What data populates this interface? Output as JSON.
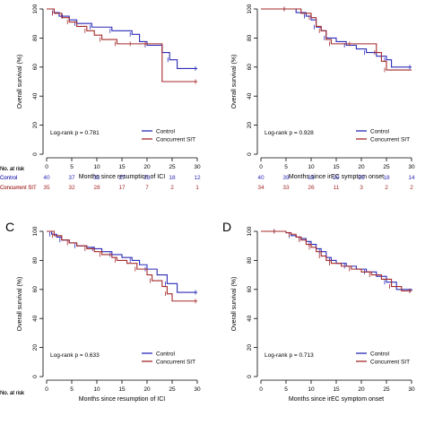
{
  "colors": {
    "control": "#2b2bb8",
    "concurrent": "#a52a2a"
  },
  "chart_data": [
    {
      "type": "line",
      "panel_label": "",
      "xlabel": "Months since resumption of ICI",
      "ylabel": "Overall survival (%)",
      "xlim": [
        0,
        30
      ],
      "ylim": [
        0,
        100
      ],
      "xticks": [
        "0",
        "5",
        "10",
        "15",
        "20",
        "25",
        "30"
      ],
      "yticks": [
        "0",
        "20",
        "40",
        "60",
        "80",
        "100"
      ],
      "legend": [
        "Control",
        "Concurrent SIT"
      ],
      "pvalue": "Log-rank p = 0.781",
      "series": [
        {
          "name": "Control",
          "x": [
            0,
            1.5,
            2.5,
            3.5,
            4.5,
            6,
            7.5,
            9,
            11,
            13,
            15,
            17,
            18.5,
            20,
            23,
            24.5,
            26,
            30
          ],
          "y": [
            100,
            97.5,
            95,
            95,
            92.5,
            90,
            90,
            87.5,
            87.5,
            85,
            85,
            82.5,
            77.5,
            75,
            70,
            65,
            59,
            59
          ]
        },
        {
          "name": "Concurrent SIT",
          "x": [
            0,
            1.5,
            3,
            4.5,
            6,
            8,
            9.5,
            11,
            13,
            14,
            15,
            17,
            18.5,
            20,
            23,
            30
          ],
          "y": [
            100,
            97,
            94,
            91,
            88,
            85,
            82,
            79,
            79,
            76,
            76,
            76,
            76,
            76,
            50,
            50
          ]
        }
      ],
      "risk_table": {
        "title": "No. at risk",
        "rows": [
          {
            "label": "Control",
            "values": [
              "40",
              "37",
              "32",
              "27",
              "23",
              "18",
              "12"
            ]
          },
          {
            "label": "Concurrent SIT",
            "values": [
              "35",
              "32",
              "28",
              "17",
              "7",
              "2",
              "1"
            ]
          }
        ]
      }
    },
    {
      "type": "line",
      "panel_label": "",
      "xlabel": "Months since irEC symptom onset",
      "ylabel": "Overall survival (%)",
      "xlim": [
        0,
        30
      ],
      "ylim": [
        0,
        100
      ],
      "xticks": [
        "0",
        "5",
        "10",
        "15",
        "20",
        "25",
        "30"
      ],
      "yticks": [
        "0",
        "20",
        "40",
        "60",
        "80",
        "100"
      ],
      "legend": [
        "Control",
        "Concurrent SIT"
      ],
      "pvalue": "Log-rank p = 0.928",
      "series": [
        {
          "name": "Control",
          "x": [
            0,
            5,
            7,
            9,
            10,
            11,
            12,
            13,
            15,
            17,
            19,
            21,
            23,
            25,
            26,
            30
          ],
          "y": [
            100,
            100,
            97.5,
            95,
            92.5,
            87.5,
            85,
            80,
            77.5,
            75,
            72.5,
            70,
            67.5,
            65,
            60,
            60
          ]
        },
        {
          "name": "Concurrent SIT",
          "x": [
            0,
            5,
            8,
            10,
            11,
            12,
            13,
            14,
            16,
            18,
            22,
            23,
            24,
            25,
            30
          ],
          "y": [
            100,
            100,
            97,
            94,
            88,
            85,
            79,
            76,
            76,
            76,
            76,
            70,
            64,
            58,
            58
          ]
        }
      ],
      "risk_table": {
        "title": "No. at risk",
        "rows": [
          {
            "label": "Control",
            "values": [
              "40",
              "39",
              "33",
              "29",
              "25",
              "18",
              "14"
            ]
          },
          {
            "label": "Concurrent SIT",
            "values": [
              "34",
              "33",
              "26",
              "11",
              "3",
              "2",
              "2"
            ]
          }
        ]
      }
    },
    {
      "type": "line",
      "panel_label": "C",
      "xlabel": "Months since resumption of ICI",
      "ylabel": "Overall survival (%)",
      "xlim": [
        0,
        30
      ],
      "ylim": [
        0,
        100
      ],
      "xticks": [
        "0",
        "5",
        "10",
        "15",
        "20",
        "25",
        "30"
      ],
      "yticks": [
        "0",
        "20",
        "40",
        "60",
        "80",
        "100"
      ],
      "legend": [
        "Control",
        "Concurrent SIT"
      ],
      "pvalue": "Log-rank p = 0.633",
      "series": [
        {
          "name": "Control",
          "x": [
            0,
            1,
            2,
            3,
            4.5,
            6,
            8,
            9.5,
            11,
            13,
            15,
            17,
            18.5,
            20,
            22,
            24,
            26,
            30
          ],
          "y": [
            100,
            98,
            96,
            94,
            92,
            90,
            89,
            88,
            86,
            84,
            82,
            80,
            77,
            74,
            70,
            64,
            58,
            58
          ]
        },
        {
          "name": "Concurrent SIT",
          "x": [
            0,
            1.5,
            3,
            4.5,
            6,
            8,
            9.5,
            11,
            13,
            14,
            16,
            18,
            20,
            21,
            23,
            24,
            25,
            30
          ],
          "y": [
            100,
            97,
            94,
            92,
            90,
            88,
            86,
            84,
            82,
            80,
            78,
            74,
            70,
            66,
            62,
            57,
            52,
            52
          ]
        }
      ],
      "risk_table": {
        "title": "No. at risk",
        "rows": []
      }
    },
    {
      "type": "line",
      "panel_label": "D",
      "xlabel": "Months since irEC symptom onset",
      "ylabel": "Overall survival (%)",
      "xlim": [
        0,
        30
      ],
      "ylim": [
        0,
        100
      ],
      "xticks": [
        "0",
        "5",
        "10",
        "15",
        "20",
        "25",
        "30"
      ],
      "yticks": [
        "0",
        "20",
        "40",
        "60",
        "80",
        "100"
      ],
      "legend": [
        "Control",
        "Concurrent SIT"
      ],
      "pvalue": "Log-rank p = 0.713",
      "series": [
        {
          "name": "Control",
          "x": [
            0,
            3,
            5,
            6,
            7,
            8,
            9,
            10,
            11,
            12,
            13,
            14,
            15,
            17,
            19,
            21,
            23,
            25,
            27,
            30
          ],
          "y": [
            100,
            100,
            99,
            97,
            96,
            95,
            93,
            91,
            88,
            86,
            82,
            80,
            78,
            76,
            74,
            72,
            69,
            65,
            60,
            59
          ]
        },
        {
          "name": "Concurrent SIT",
          "x": [
            0,
            3,
            5,
            6,
            7,
            8,
            9,
            10,
            11,
            12,
            13,
            14,
            16,
            18,
            20,
            22,
            24,
            26,
            28,
            30
          ],
          "y": [
            100,
            100,
            99,
            98,
            96,
            94,
            91,
            89,
            86,
            83,
            80,
            78,
            76,
            74,
            72,
            70,
            67,
            62,
            59,
            59
          ]
        }
      ],
      "risk_table": {
        "title": "No. at risk",
        "rows": []
      }
    }
  ]
}
